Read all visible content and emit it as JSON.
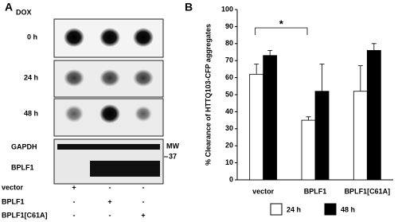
{
  "panel_a": {
    "label": "A",
    "dox": "DOX",
    "timepoints": [
      "0 h",
      "24 h",
      "48 h"
    ],
    "blots": [
      "GAPDH",
      "BPLF1"
    ],
    "mw": "MW",
    "mw_marker": 37,
    "conditions": [
      {
        "name": "vector",
        "marks": [
          "+",
          "-",
          "-"
        ]
      },
      {
        "name": "BPLF1",
        "marks": [
          "-",
          "+",
          "-"
        ]
      },
      {
        "name": "BPLF1[C61A]",
        "marks": [
          "-",
          "-",
          "+"
        ]
      }
    ]
  },
  "chart_data": {
    "type": "bar",
    "label": "B",
    "ylabel": "% Clearance of HTTQ103-CFP aggregates",
    "categories": [
      "vector",
      "BPLF1",
      "BPLF1[C61A]"
    ],
    "series": [
      {
        "name": "24 h",
        "color": "#ffffff",
        "values": [
          62,
          35,
          52
        ],
        "errors": [
          6,
          2,
          15
        ]
      },
      {
        "name": "48 h",
        "color": "#000000",
        "values": [
          73,
          52,
          76
        ],
        "errors": [
          3,
          16,
          4
        ]
      }
    ],
    "ylim": [
      0,
      100
    ],
    "yticks": [
      0,
      10,
      20,
      30,
      40,
      50,
      60,
      70,
      80,
      90,
      100
    ],
    "annotation": "*"
  }
}
